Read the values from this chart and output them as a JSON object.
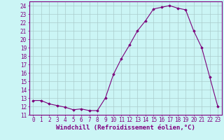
{
  "x": [
    0,
    1,
    2,
    3,
    4,
    5,
    6,
    7,
    8,
    9,
    10,
    11,
    12,
    13,
    14,
    15,
    16,
    17,
    18,
    19,
    20,
    21,
    22,
    23
  ],
  "y": [
    12.7,
    12.7,
    12.3,
    12.1,
    11.9,
    11.6,
    11.7,
    11.5,
    11.5,
    13.0,
    15.8,
    17.7,
    19.3,
    21.0,
    22.2,
    23.6,
    23.8,
    24.0,
    23.7,
    23.5,
    21.0,
    19.0,
    15.5,
    12.0
  ],
  "line_color": "#7B007B",
  "marker": "D",
  "markersize": 1.8,
  "bg_color": "#cbf5f5",
  "grid_color": "#aacccc",
  "xlabel": "Windchill (Refroidissement éolien,°C)",
  "ylim": [
    11,
    24.5
  ],
  "xlim": [
    -0.5,
    23.5
  ],
  "yticks": [
    11,
    12,
    13,
    14,
    15,
    16,
    17,
    18,
    19,
    20,
    21,
    22,
    23,
    24
  ],
  "xticks": [
    0,
    1,
    2,
    3,
    4,
    5,
    6,
    7,
    8,
    9,
    10,
    11,
    12,
    13,
    14,
    15,
    16,
    17,
    18,
    19,
    20,
    21,
    22,
    23
  ],
  "tick_label_fontsize": 5.5,
  "xlabel_fontsize": 6.5,
  "tick_color": "#800080",
  "label_color": "#800080",
  "spine_color": "#800080"
}
